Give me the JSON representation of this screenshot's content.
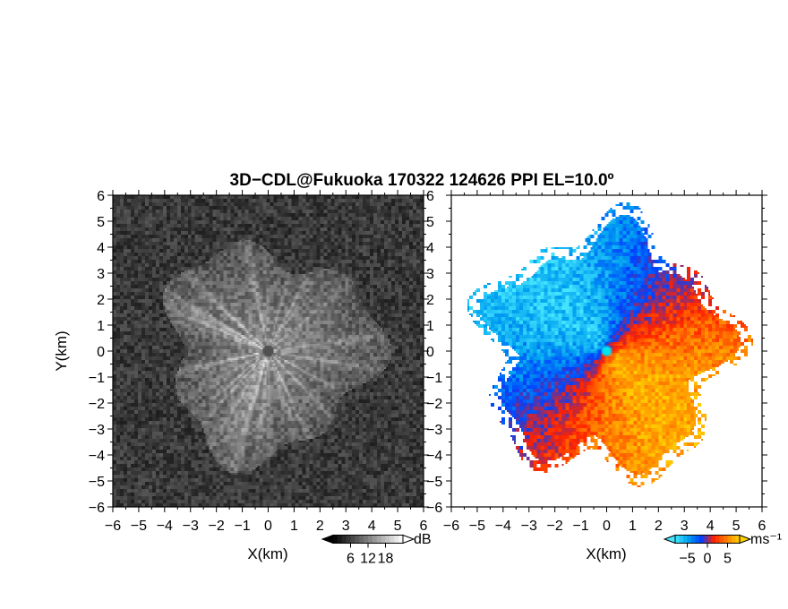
{
  "title": "3D−CDL@Fukuoka 170322 124626 PPI EL=10.0º",
  "chart_data": [
    {
      "type": "heatmap",
      "panel": "left",
      "quantity": "reflectivity",
      "xlabel": "X(km)",
      "ylabel": "Y(km)",
      "xlim": [
        -6,
        6
      ],
      "ylim": [
        -6,
        6
      ],
      "xticks": [
        -6,
        -5,
        -4,
        -3,
        -2,
        -1,
        0,
        1,
        2,
        3,
        4,
        5,
        6
      ],
      "yticks": [
        -6,
        -5,
        -4,
        -3,
        -2,
        -1,
        0,
        1,
        2,
        3,
        4,
        5,
        6
      ],
      "xtick_labels": [
        "−6",
        "−5",
        "−4",
        "−3",
        "−2",
        "−1",
        "0",
        "1",
        "2",
        "3",
        "4",
        "5",
        "6"
      ],
      "ytick_labels": [
        "−6",
        "−5",
        "−4",
        "−3",
        "−2",
        "−1",
        "0",
        "1",
        "2",
        "3",
        "4",
        "5",
        "6"
      ],
      "colormap": "grayscale",
      "colorbar": {
        "unit": "dB",
        "range": [
          0,
          24
        ],
        "ticks": [
          6,
          12,
          18
        ],
        "tick_labels": [
          "6",
          "12",
          "18"
        ],
        "colors": [
          "#000000",
          "#ffffff"
        ]
      },
      "echo_radius_km": 4.0,
      "center_marker": [
        0,
        0
      ]
    },
    {
      "type": "heatmap",
      "panel": "right",
      "quantity": "doppler_velocity",
      "xlabel": "X(km)",
      "ylabel": "",
      "xlim": [
        -6,
        6
      ],
      "ylim": [
        -6,
        6
      ],
      "xticks": [
        -6,
        -5,
        -4,
        -3,
        -2,
        -1,
        0,
        1,
        2,
        3,
        4,
        5,
        6
      ],
      "yticks": [
        -6,
        -5,
        -4,
        -3,
        -2,
        -1,
        0,
        1,
        2,
        3,
        4,
        5,
        6
      ],
      "xtick_labels": [
        "−6",
        "−5",
        "−4",
        "−3",
        "−2",
        "−1",
        "0",
        "1",
        "2",
        "3",
        "4",
        "5",
        "6"
      ],
      "ytick_labels": [
        "−6",
        "−5",
        "−4",
        "−3",
        "−2",
        "−1",
        "0",
        "1",
        "2",
        "3",
        "4",
        "5",
        "6"
      ],
      "colorbar": {
        "unit": "ms⁻¹",
        "range": [
          -8,
          8
        ],
        "ticks": [
          -5,
          0,
          5
        ],
        "tick_labels": [
          "−5",
          "0",
          "5"
        ],
        "colors": [
          "#46e6ff",
          "#00a0f0",
          "#0040ff",
          "#ff2000",
          "#ff8000",
          "#ffd000"
        ]
      },
      "echo_radius_km": 4.3,
      "center_marker": [
        0,
        0
      ]
    }
  ],
  "colors": {
    "center_marker_left": "#505050",
    "center_marker_right": "#00e5ee"
  }
}
